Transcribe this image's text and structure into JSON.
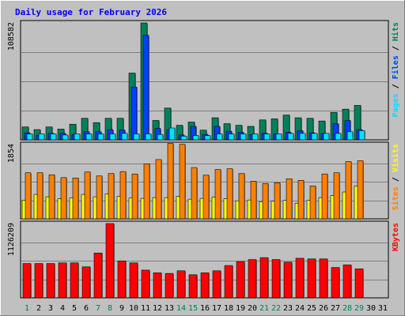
{
  "title": "Daily usage for February 2026",
  "colors": {
    "background": "#c0c0c0",
    "title": "#0000ff",
    "hits": "#00805c",
    "files": "#0040ff",
    "pages": "#00e0ff",
    "visits": "#ff8000",
    "sites": "#ffff00",
    "kbytes": "#ff0000",
    "weekend_label": "#00805c",
    "weekday_label": "#000000"
  },
  "chart_data": [
    {
      "type": "bar",
      "panel": "top",
      "max_label": "108582",
      "ymax": 108582,
      "categories": [
        "1",
        "2",
        "3",
        "4",
        "5",
        "6",
        "7",
        "8",
        "9",
        "10",
        "11",
        "12",
        "13",
        "14",
        "15",
        "16",
        "17",
        "18",
        "19",
        "20",
        "21",
        "22",
        "23",
        "24",
        "25",
        "26",
        "27",
        "28",
        "29",
        "30",
        "31"
      ],
      "weekend_days": [
        "1",
        "7",
        "8",
        "14",
        "15",
        "21",
        "22",
        "28",
        "29"
      ],
      "legend": [
        {
          "text": "Pages",
          "color_key": "pages"
        },
        {
          "text": " / ",
          "color_key": "weekday_label"
        },
        {
          "text": "Files",
          "color_key": "files"
        },
        {
          "text": " / ",
          "color_key": "weekday_label"
        },
        {
          "text": "Hits",
          "color_key": "hits"
        }
      ],
      "series": [
        {
          "name": "Hits",
          "color_key": "hits",
          "values": [
            12000,
            9500,
            12000,
            10000,
            14500,
            20000,
            16000,
            20000,
            20000,
            62000,
            108582,
            18000,
            29500,
            13500,
            16500,
            9000,
            20500,
            15000,
            13500,
            12500,
            18500,
            19500,
            23000,
            20500,
            20000,
            17500,
            25500,
            28500,
            32000,
            0,
            0
          ]
        },
        {
          "name": "Files",
          "color_key": "files",
          "values": [
            6500,
            4000,
            6000,
            6000,
            5000,
            7500,
            7500,
            9500,
            9000,
            49000,
            97000,
            10500,
            9000,
            4500,
            12500,
            5000,
            12500,
            8000,
            7000,
            5000,
            6000,
            5500,
            7000,
            8500,
            6500,
            6000,
            15000,
            18000,
            9500,
            0,
            0
          ]
        },
        {
          "name": "Pages",
          "color_key": "pages",
          "values": [
            5500,
            5500,
            5500,
            4500,
            5500,
            5500,
            5500,
            5500,
            6000,
            5500,
            5500,
            5000,
            11000,
            3500,
            4000,
            4000,
            5500,
            5500,
            5500,
            5500,
            5500,
            5500,
            6000,
            6000,
            6000,
            6000,
            6000,
            7500,
            8500,
            0,
            0
          ]
        }
      ]
    },
    {
      "type": "bar",
      "panel": "middle",
      "max_label": "1854",
      "ymax": 1854,
      "legend": [
        {
          "text": "Sites",
          "color_key": "visits"
        },
        {
          "text": " / ",
          "color_key": "weekday_label"
        },
        {
          "text": "Visits",
          "color_key": "sites"
        }
      ],
      "series": [
        {
          "name": "Visits",
          "color_key": "visits",
          "values": [
            1150,
            1150,
            1100,
            1030,
            1020,
            1170,
            1070,
            1130,
            1180,
            1120,
            1370,
            1480,
            1880,
            1860,
            1280,
            1090,
            1230,
            1250,
            1130,
            940,
            880,
            900,
            1000,
            960,
            820,
            1120,
            1150,
            1430,
            1450,
            0,
            0
          ]
        },
        {
          "name": "Sites",
          "color_key": "sites",
          "values": [
            460,
            610,
            550,
            500,
            520,
            610,
            550,
            620,
            560,
            520,
            510,
            530,
            530,
            560,
            490,
            510,
            540,
            500,
            450,
            470,
            430,
            440,
            460,
            390,
            460,
            530,
            580,
            670,
            820,
            0,
            0
          ]
        }
      ]
    },
    {
      "type": "bar",
      "panel": "bottom",
      "max_label": "1126209",
      "ymax": 1126209,
      "legend": [
        {
          "text": "KBytes",
          "color_key": "kbytes"
        }
      ],
      "series": [
        {
          "name": "KBytes",
          "color_key": "kbytes",
          "values": [
            520000,
            520000,
            520000,
            530000,
            530000,
            470000,
            680000,
            1126209,
            560000,
            530000,
            420000,
            380000,
            370000,
            410000,
            350000,
            380000,
            410000,
            490000,
            550000,
            580000,
            610000,
            580000,
            540000,
            600000,
            590000,
            590000,
            460000,
            500000,
            440000,
            0,
            0
          ]
        }
      ]
    }
  ]
}
